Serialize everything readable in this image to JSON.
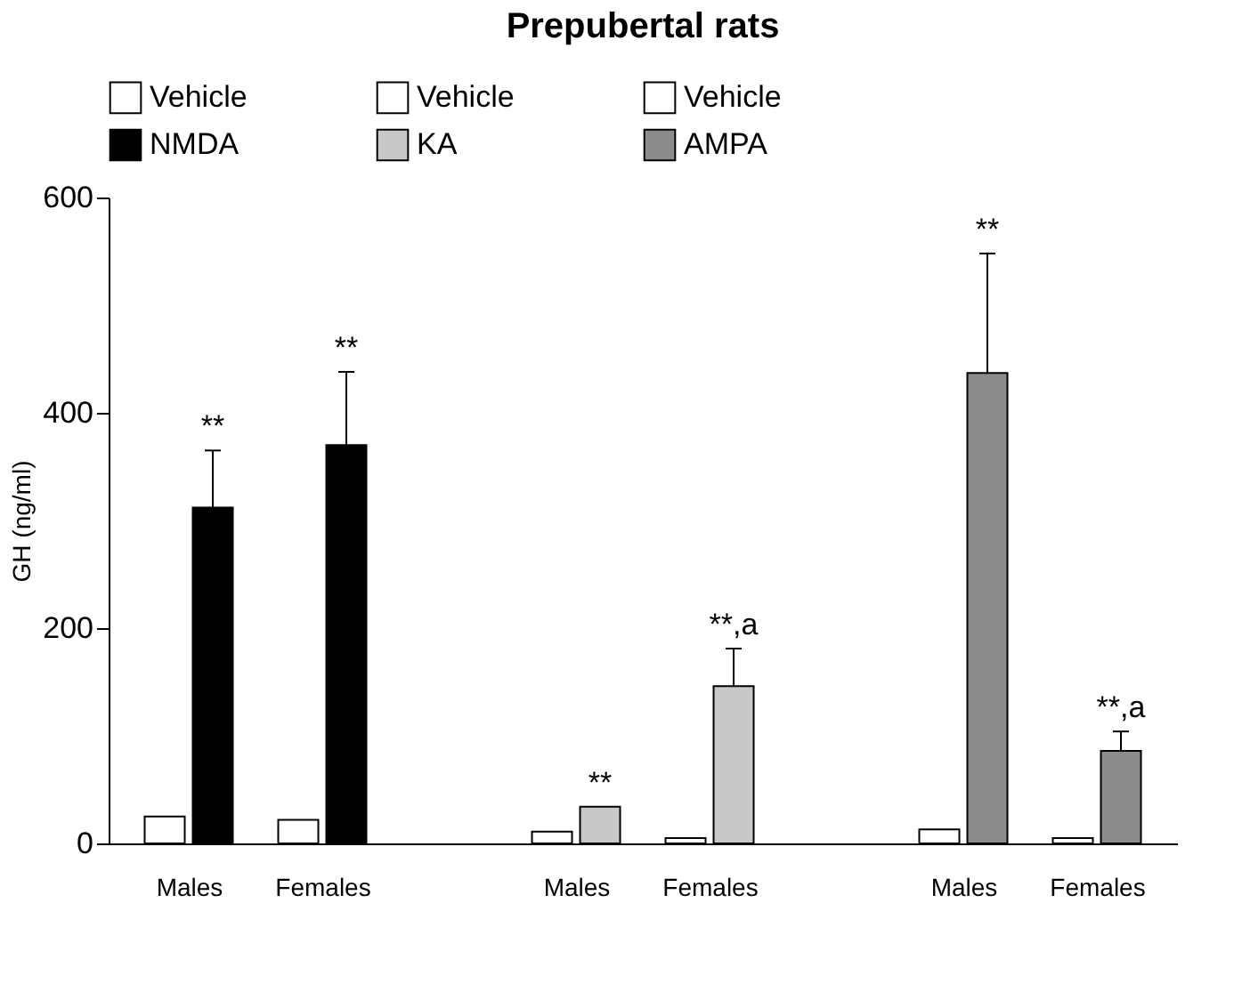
{
  "chart_data": {
    "type": "bar",
    "title": "Prepubertal rats",
    "ylabel": "GH (ng/ml)",
    "categories": [
      "Males",
      "Females",
      "Males",
      "Females",
      "Males",
      "Females"
    ],
    "series": [
      {
        "name": "Vehicle",
        "color": "#ffffff",
        "values": [
          25,
          22,
          null,
          null,
          null,
          null
        ]
      },
      {
        "name": "NMDA",
        "color": "#000000",
        "values": [
          312,
          370,
          null,
          null,
          null,
          null
        ],
        "errors": [
          53,
          68,
          null,
          null,
          null,
          null
        ]
      },
      {
        "name": "Vehicle",
        "color": "#ffffff",
        "values": [
          null,
          null,
          11,
          5,
          null,
          null
        ]
      },
      {
        "name": "KA",
        "color": "#c8c8c8",
        "values": [
          null,
          null,
          34,
          146,
          null,
          null
        ],
        "errors": [
          null,
          null,
          null,
          35,
          null,
          null
        ]
      },
      {
        "name": "Vehicle",
        "color": "#ffffff",
        "values": [
          null,
          null,
          null,
          null,
          13,
          5
        ]
      },
      {
        "name": "AMPA",
        "color": "#8c8c8c",
        "values": [
          null,
          null,
          null,
          null,
          437,
          86
        ],
        "errors": [
          null,
          null,
          null,
          null,
          111,
          18
        ]
      }
    ],
    "ylim": [
      0,
      600
    ],
    "yticks": [
      0,
      200,
      400,
      600
    ],
    "grid": false,
    "legend": "top",
    "annotations": [
      "**",
      "**",
      "**",
      "**,a",
      "**",
      "**,a"
    ]
  }
}
